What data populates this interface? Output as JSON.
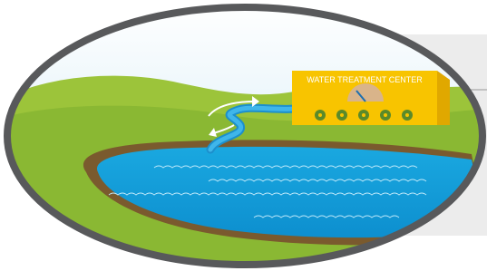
{
  "building": {
    "label": "WATER TREATMENT CENTER"
  }
}
